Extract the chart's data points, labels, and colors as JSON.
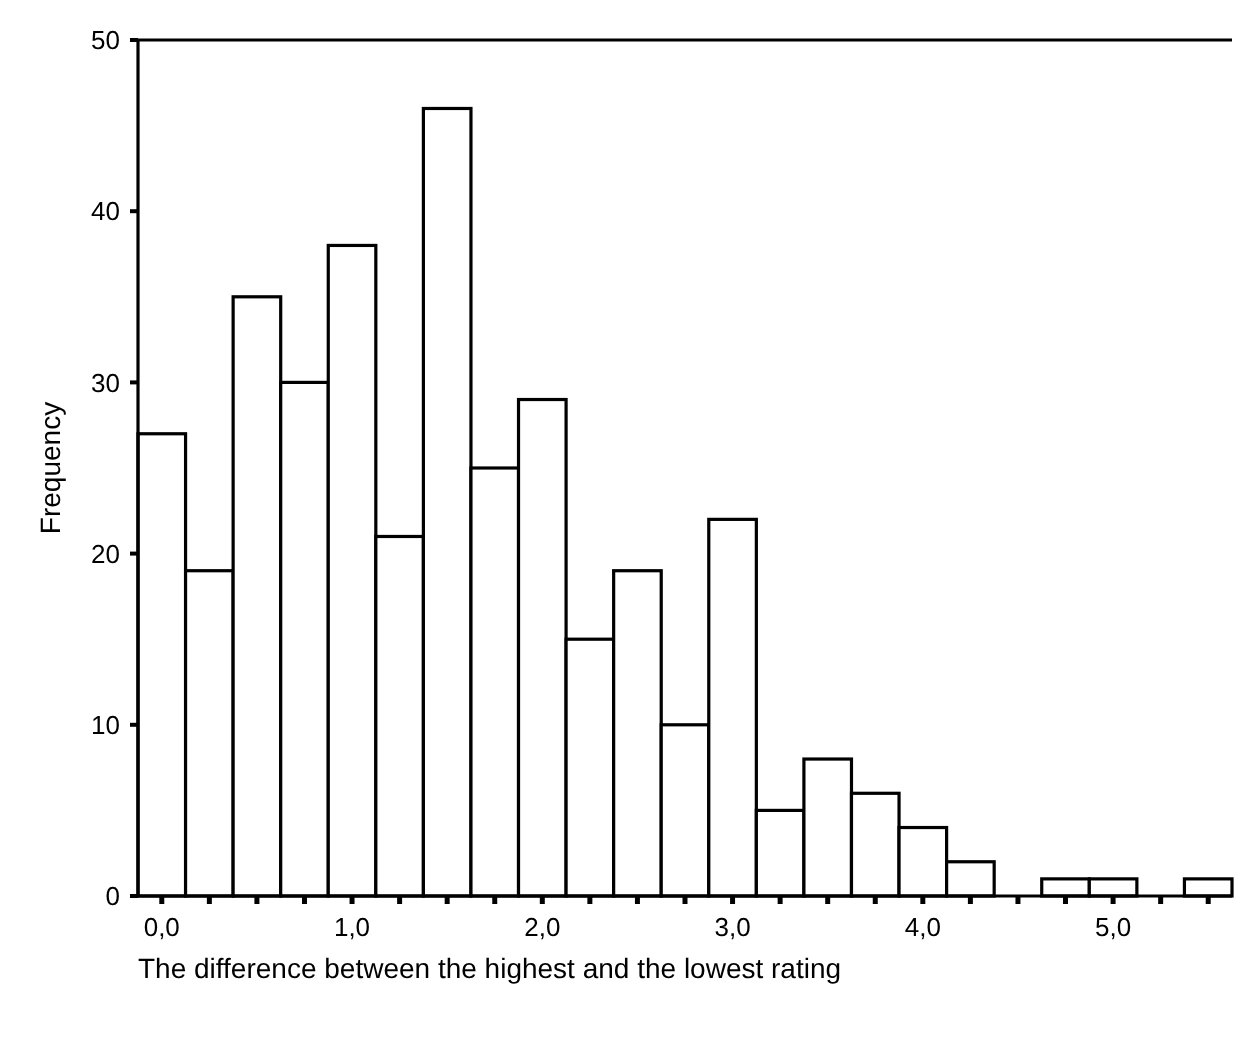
{
  "chart_data": {
    "type": "histogram",
    "xlabel": "The difference between the highest and the lowest rating",
    "ylabel": "Frequency",
    "bins": [
      -0.125,
      0.125,
      0.375,
      0.625,
      0.875,
      1.125,
      1.375,
      1.625,
      1.875,
      2.125,
      2.375,
      2.625,
      2.875,
      3.125,
      3.375,
      3.625,
      3.875,
      4.125,
      4.375,
      4.625,
      4.875,
      5.125,
      5.375,
      5.625
    ],
    "values": [
      27,
      19,
      35,
      30,
      38,
      21,
      46,
      25,
      29,
      15,
      19,
      10,
      22,
      5,
      8,
      6,
      4,
      2,
      0,
      1,
      1,
      0,
      1
    ],
    "color": "#ffffff",
    "xlim": [
      -0.125,
      5.625
    ],
    "xticks": [
      {
        "value": 0,
        "label": "0,0"
      },
      {
        "value": 0.25,
        "label": null
      },
      {
        "value": 0.5,
        "label": null
      },
      {
        "value": 0.75,
        "label": null
      },
      {
        "value": 1,
        "label": "1,0"
      },
      {
        "value": 1.25,
        "label": null
      },
      {
        "value": 1.5,
        "label": null
      },
      {
        "value": 1.75,
        "label": null
      },
      {
        "value": 2,
        "label": "2,0"
      },
      {
        "value": 2.25,
        "label": null
      },
      {
        "value": 2.5,
        "label": null
      },
      {
        "value": 2.75,
        "label": null
      },
      {
        "value": 3,
        "label": "3,0"
      },
      {
        "value": 3.25,
        "label": null
      },
      {
        "value": 3.5,
        "label": null
      },
      {
        "value": 3.75,
        "label": null
      },
      {
        "value": 4,
        "label": "4,0"
      },
      {
        "value": 4.25,
        "label": null
      },
      {
        "value": 4.5,
        "label": null
      },
      {
        "value": 4.75,
        "label": null
      },
      {
        "value": 5,
        "label": "5,0"
      },
      {
        "value": 5.25,
        "label": null
      },
      {
        "value": 5.5,
        "label": null
      }
    ],
    "ylim": [
      0,
      50
    ],
    "yticks": [
      0,
      10,
      20,
      30,
      40,
      50
    ]
  }
}
